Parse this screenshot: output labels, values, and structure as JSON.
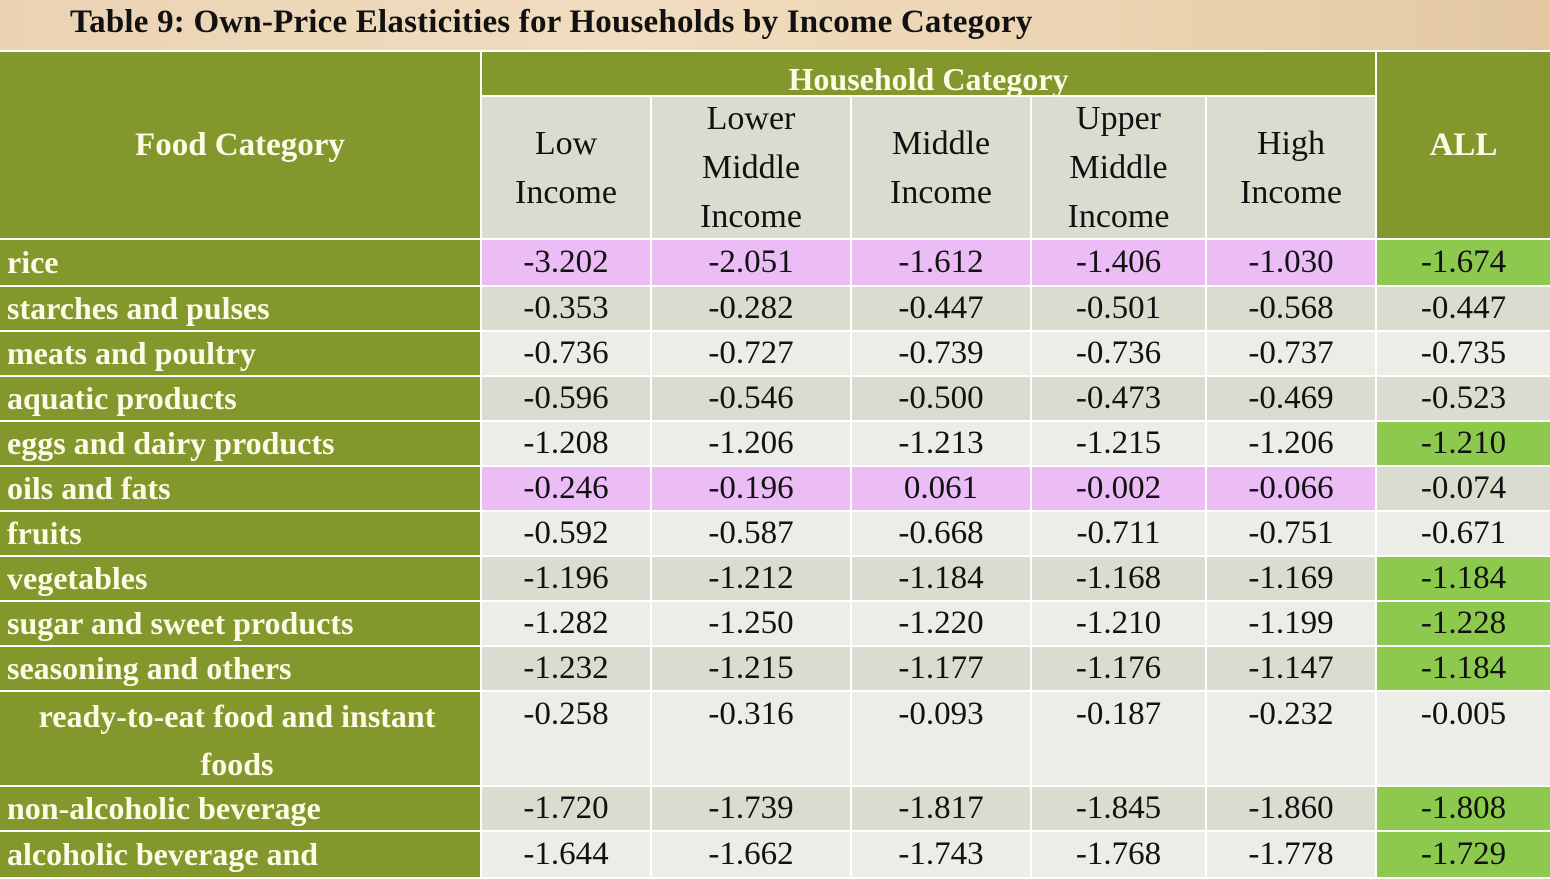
{
  "title": "Table 9: Own-Price Elasticities for Households by Income Category",
  "header": {
    "food_category": "Food Category",
    "household_category": "Household Category",
    "all": "ALL",
    "columns": [
      "Low Income",
      "Lower Middle Income",
      "Middle Income",
      "Upper Middle Income",
      "High Income"
    ]
  },
  "colors": {
    "header_green": "#82972c",
    "highlight_pink": "#ebbcf6",
    "highlight_green": "#8cc94c",
    "row_dark": "#d9dccf",
    "row_light": "#ecede7"
  },
  "rows": [
    {
      "label": "rice",
      "values": [
        "-3.202",
        "-2.051",
        "-1.612",
        "-1.406",
        "-1.030"
      ],
      "all": "-1.674",
      "values_highlight": "pink",
      "all_highlight": "green"
    },
    {
      "label": "starches and pulses",
      "values": [
        "-0.353",
        "-0.282",
        "-0.447",
        "-0.501",
        "-0.568"
      ],
      "all": "-0.447"
    },
    {
      "label": "meats and poultry",
      "values": [
        "-0.736",
        "-0.727",
        "-0.739",
        "-0.736",
        "-0.737"
      ],
      "all": "-0.735"
    },
    {
      "label": "aquatic products",
      "values": [
        "-0.596",
        "-0.546",
        "-0.500",
        "-0.473",
        "-0.469"
      ],
      "all": "-0.523"
    },
    {
      "label": "eggs and dairy products",
      "values": [
        "-1.208",
        "-1.206",
        "-1.213",
        "-1.215",
        "-1.206"
      ],
      "all": "-1.210",
      "all_highlight": "green"
    },
    {
      "label": "oils and fats",
      "values": [
        "-0.246",
        "-0.196",
        "0.061",
        "-0.002",
        "-0.066"
      ],
      "all": "-0.074",
      "values_highlight": "pink"
    },
    {
      "label": "fruits",
      "values": [
        "-0.592",
        "-0.587",
        "-0.668",
        "-0.711",
        "-0.751"
      ],
      "all": "-0.671"
    },
    {
      "label": "vegetables",
      "values": [
        "-1.196",
        "-1.212",
        "-1.184",
        "-1.168",
        "-1.169"
      ],
      "all": "-1.184",
      "all_highlight": "green"
    },
    {
      "label": "sugar and sweet products",
      "values": [
        "-1.282",
        "-1.250",
        "-1.220",
        "-1.210",
        "-1.199"
      ],
      "all": "-1.228",
      "all_highlight": "green"
    },
    {
      "label": "seasoning and others",
      "values": [
        "-1.232",
        "-1.215",
        "-1.177",
        "-1.176",
        "-1.147"
      ],
      "all": "-1.184",
      "all_highlight": "green"
    },
    {
      "label": "ready-to-eat food and instant foods",
      "values": [
        "-0.258",
        "-0.316",
        "-0.093",
        "-0.187",
        "-0.232"
      ],
      "all": "-0.005"
    },
    {
      "label": "non-alcoholic beverage",
      "values": [
        "-1.720",
        "-1.739",
        "-1.817",
        "-1.845",
        "-1.860"
      ],
      "all": "-1.808",
      "all_highlight": "green"
    },
    {
      "label": "alcoholic beverage and",
      "values": [
        "-1.644",
        "-1.662",
        "-1.743",
        "-1.768",
        "-1.778"
      ],
      "all": "-1.729",
      "all_highlight": "green"
    }
  ]
}
